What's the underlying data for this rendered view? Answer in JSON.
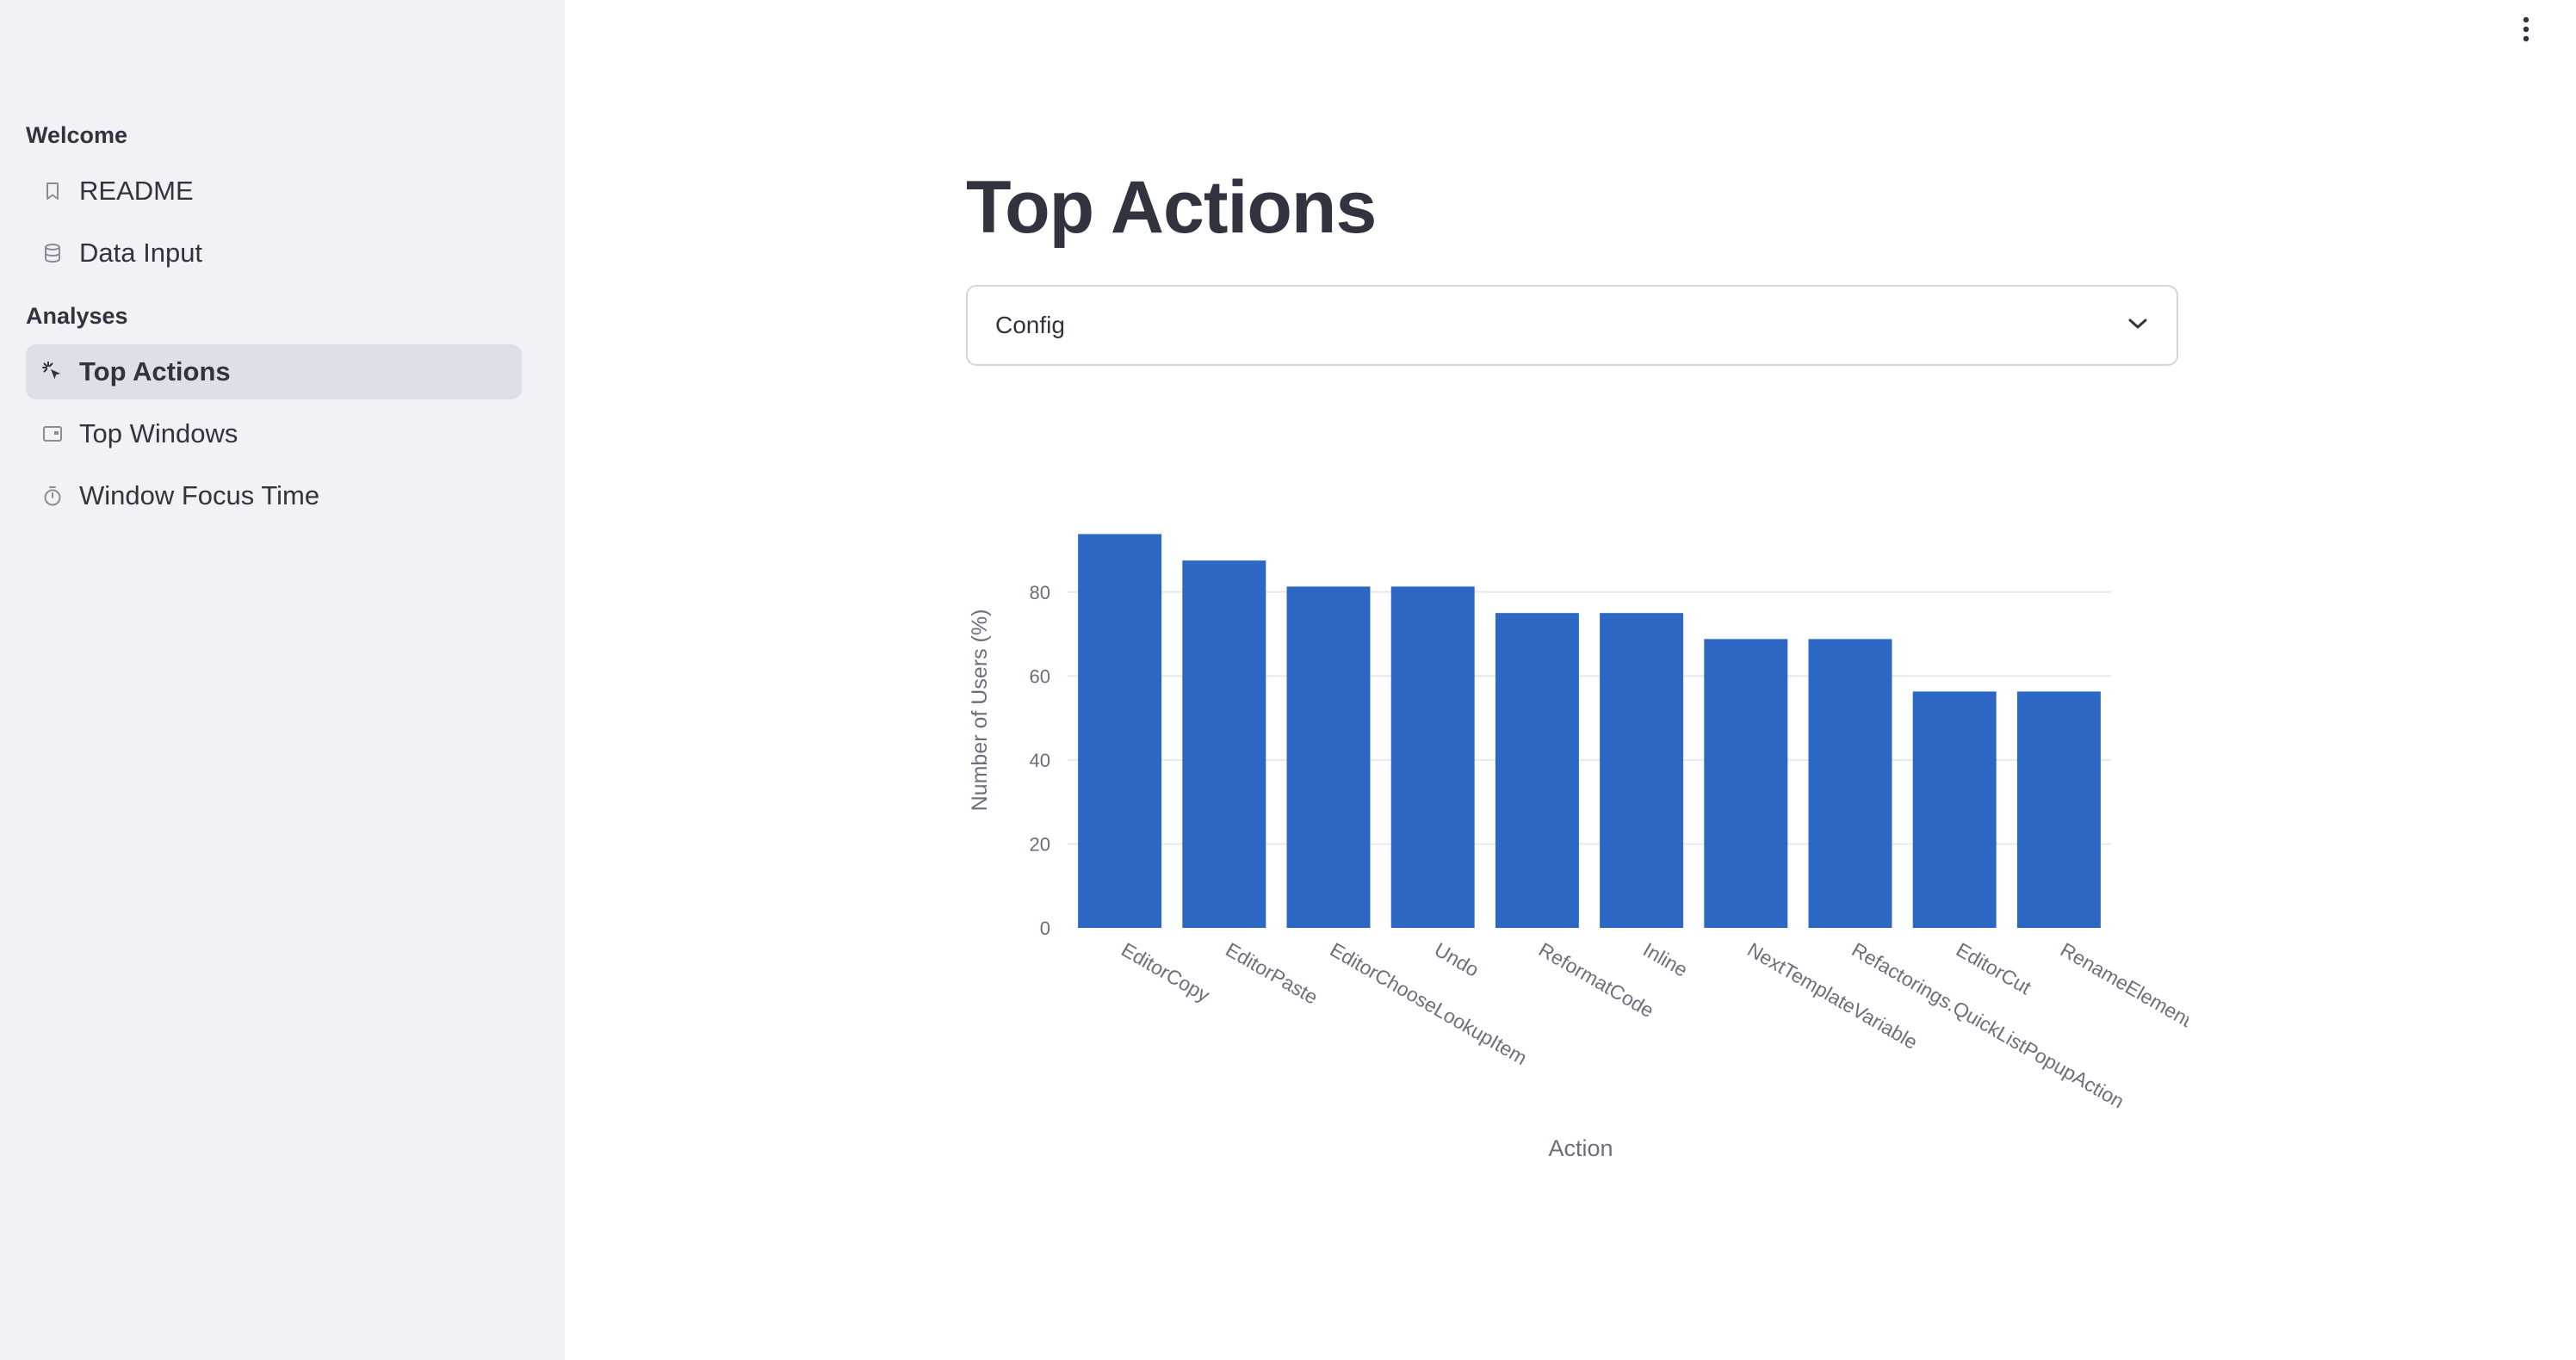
{
  "sidebar": {
    "sections": [
      {
        "label": "Welcome",
        "items": [
          {
            "label": "README",
            "icon": "bookmark-icon"
          },
          {
            "label": "Data Input",
            "icon": "database-icon"
          }
        ]
      },
      {
        "label": "Analyses",
        "items": [
          {
            "label": "Top Actions",
            "icon": "cursor-click-icon",
            "active": true
          },
          {
            "label": "Top Windows",
            "icon": "window-icon"
          },
          {
            "label": "Window Focus Time",
            "icon": "timer-icon"
          }
        ]
      }
    ],
    "active_bg": "#dde0e8",
    "bg": "#f0f2f6"
  },
  "header": {
    "menu_icon": "vertical-dots-icon"
  },
  "main": {
    "title": "Top Actions",
    "select": {
      "value": "Config",
      "icon": "chevron-down-icon"
    }
  },
  "chart_data": {
    "type": "bar",
    "categories": [
      "EditorCopy",
      "EditorPaste",
      "EditorChooseLookupItem",
      "Undo",
      "ReformatCode",
      "Inline",
      "NextTemplateVariable",
      "Refactorings.QuickListPopupAction",
      "EditorCut",
      "RenameElement"
    ],
    "values": [
      93.8,
      87.5,
      81.3,
      81.3,
      75,
      75,
      68.8,
      68.8,
      56.3,
      56.3
    ],
    "xlabel": "Action",
    "ylabel": "Number of Users (%)",
    "ylim": [
      0,
      98
    ],
    "yticks": [
      0,
      20,
      40,
      60,
      80
    ],
    "bar_color": "#2b67c3",
    "grid": true,
    "legend": false
  }
}
